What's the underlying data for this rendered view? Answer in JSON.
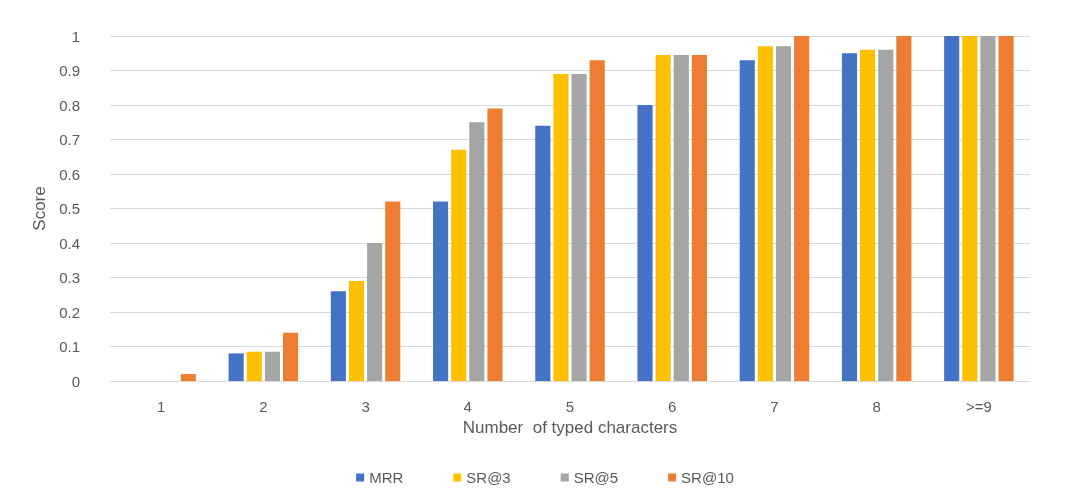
{
  "chart_data": {
    "type": "bar",
    "xlabel": "Number  of typed characters",
    "ylabel": "Score",
    "categories": [
      "1",
      "2",
      "3",
      "4",
      "5",
      "6",
      "7",
      "8",
      ">=9"
    ],
    "series": [
      {
        "name": "MRR",
        "color": "#4472c4",
        "values": [
          0,
          0.08,
          0.26,
          0.52,
          0.74,
          0.8,
          0.93,
          0.95,
          1
        ]
      },
      {
        "name": "SR@3",
        "color": "#ffc000",
        "values": [
          0,
          0.085,
          0.29,
          0.67,
          0.89,
          0.945,
          0.97,
          0.96,
          1
        ]
      },
      {
        "name": "SR@5",
        "color": "#a5a5a5",
        "values": [
          0,
          0.085,
          0.4,
          0.75,
          0.89,
          0.945,
          0.97,
          0.96,
          1
        ]
      },
      {
        "name": "SR@10",
        "color": "#ed7d31",
        "values": [
          0.02,
          0.14,
          0.52,
          0.79,
          0.93,
          0.945,
          1,
          1,
          1
        ]
      }
    ],
    "ylim": [
      0,
      1
    ],
    "yticks": [
      0,
      0.1,
      0.2,
      0.3,
      0.4,
      0.5,
      0.6,
      0.7,
      0.8,
      0.9,
      1
    ],
    "grid": "y",
    "legend": "bottom"
  }
}
